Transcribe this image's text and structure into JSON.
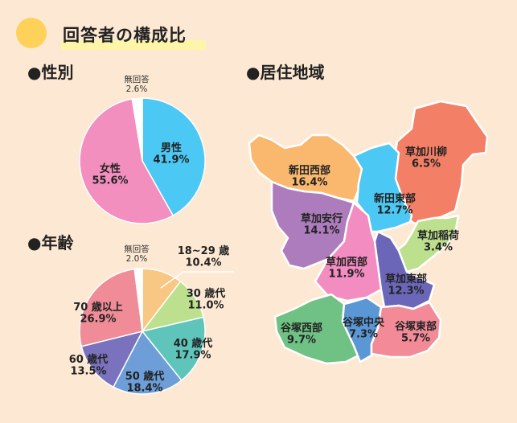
{
  "header": {
    "title": "回答者の構成比"
  },
  "sections": {
    "gender": "●性別",
    "age": "●年齢",
    "region": "●居住地域"
  },
  "colors": {
    "background": "#fde9d3",
    "accent_dot": "#fdd15a"
  },
  "chart_data": [
    {
      "type": "pie",
      "title": "",
      "categories": [
        "男性",
        "女性",
        "無回答"
      ],
      "values": [
        41.9,
        55.6,
        2.6
      ],
      "value_labels": [
        "41.9%",
        "55.6%",
        "2.6%"
      ],
      "colors": [
        "#4bc8f3",
        "#f28fbf",
        "#ffffff"
      ]
    },
    {
      "type": "pie",
      "title": "",
      "categories": [
        "18~29 歳",
        "30 歳代",
        "40 歳代",
        "50 歳代",
        "60 歳代",
        "70 歳以上",
        "無回答"
      ],
      "values": [
        10.4,
        11.0,
        17.9,
        18.4,
        13.5,
        26.9,
        2.0
      ],
      "value_labels": [
        "10.4%",
        "11.0%",
        "17.9%",
        "18.4%",
        "13.5%",
        "26.9%",
        "2.0%"
      ],
      "colors": [
        "#f9c784",
        "#bde08e",
        "#5fc5bb",
        "#6d9ed8",
        "#7b72bd",
        "#f08c97",
        "#ffffff"
      ]
    },
    {
      "type": "map",
      "title": "",
      "categories": [
        "草加川柳",
        "新田西部",
        "新田東部",
        "草加安行",
        "草加稲荷",
        "草加西部",
        "草加東部",
        "谷塚西部",
        "谷塚中央",
        "谷塚東部"
      ],
      "values": [
        6.5,
        16.4,
        12.7,
        14.1,
        3.4,
        11.9,
        12.3,
        9.7,
        7.3,
        5.7
      ],
      "value_labels": [
        "6.5%",
        "16.4%",
        "12.7%",
        "14.1%",
        "3.4%",
        "11.9%",
        "12.3%",
        "9.7%",
        "7.3%",
        "5.7%"
      ],
      "colors": [
        "#f37f67",
        "#f9b86e",
        "#4bc8f3",
        "#ad7cbd",
        "#bde08e",
        "#f38cc0",
        "#6b66b8",
        "#6fc184",
        "#5b97d5",
        "#f28b97"
      ]
    }
  ]
}
